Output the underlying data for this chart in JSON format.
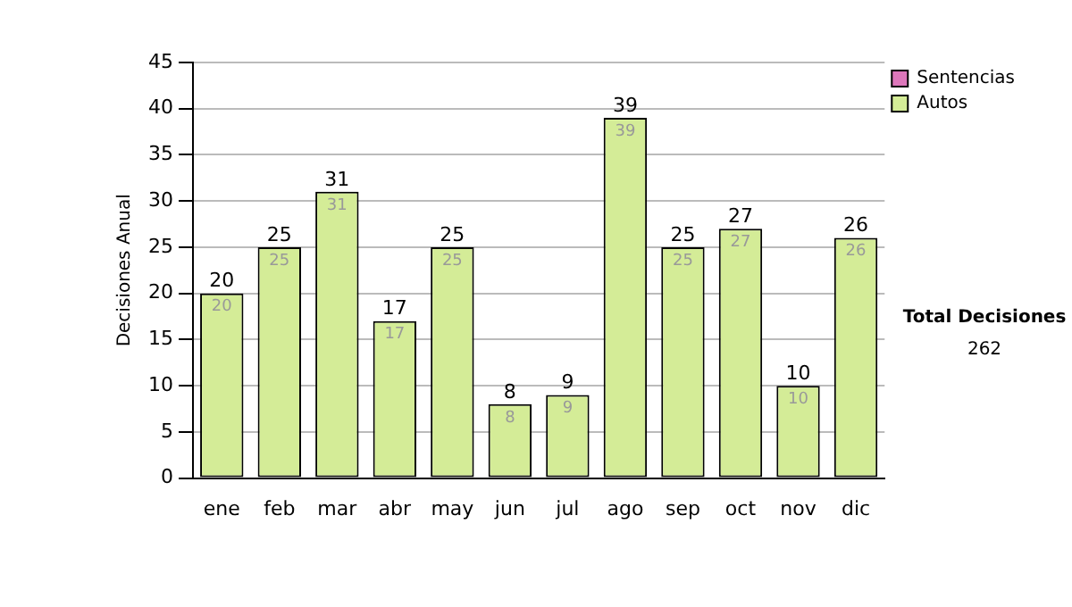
{
  "chart_data": {
    "type": "bar",
    "ylabel": "Decisiones Anual",
    "categories": [
      "ene",
      "feb",
      "mar",
      "abr",
      "may",
      "jun",
      "jul",
      "ago",
      "sep",
      "oct",
      "nov",
      "dic"
    ],
    "stacked": true,
    "series": [
      {
        "name": "Sentencias",
        "color": "#dd77bb",
        "values": [
          0,
          0,
          0,
          0,
          0,
          0,
          0,
          0,
          0,
          0,
          0,
          0
        ]
      },
      {
        "name": "Autos",
        "color": "#d4ec97",
        "values": [
          20,
          25,
          31,
          17,
          25,
          8,
          9,
          39,
          25,
          27,
          10,
          26
        ],
        "value_labels": [
          "20",
          "25",
          "31",
          "17",
          "25",
          "8",
          "9",
          "39",
          "25",
          "27",
          "10",
          "26"
        ]
      }
    ],
    "totals": [
      "20",
      "25",
      "31",
      "17",
      "25",
      "8",
      "9",
      "39",
      "25",
      "27",
      "10",
      "26"
    ],
    "ylim": [
      0,
      45
    ],
    "yticks": [
      0,
      5,
      10,
      15,
      20,
      25,
      30,
      35,
      40,
      45
    ],
    "grid": "y",
    "legend": "right",
    "annotations": [
      "Total Decisiones",
      "262"
    ]
  }
}
